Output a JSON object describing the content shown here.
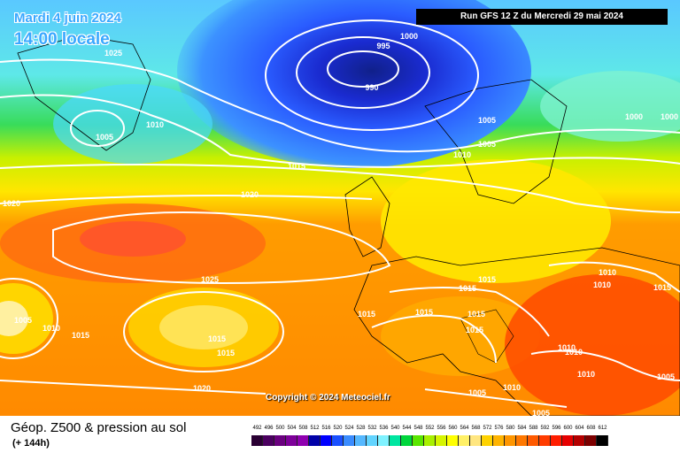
{
  "header": {
    "date": "Mardi 4 juin 2024",
    "local_time": "14:00 locale",
    "run": "Run GFS 12 Z du Mercredi 29 mai 2024"
  },
  "copyright": "Copyright © 2024 Meteociel.fr",
  "footer": {
    "title": "Géop. Z500 & pression au sol",
    "lead": "(+ 144h)"
  },
  "legend": {
    "values": [
      "492",
      "496",
      "500",
      "504",
      "508",
      "512",
      "516",
      "520",
      "524",
      "528",
      "532",
      "536",
      "540",
      "544",
      "548",
      "552",
      "556",
      "560",
      "564",
      "568",
      "572",
      "576",
      "580",
      "584",
      "588",
      "592",
      "596",
      "600",
      "604",
      "608",
      "612"
    ],
    "colors": [
      "#2a0033",
      "#4b0060",
      "#6a007f",
      "#7d0099",
      "#8f00b0",
      "#0000a8",
      "#0000ff",
      "#1a50ff",
      "#3a8cff",
      "#55b8ff",
      "#62d4ff",
      "#7ff2ff",
      "#00e6a0",
      "#00d63c",
      "#5ae600",
      "#a8f000",
      "#d6f500",
      "#ffff00",
      "#fff066",
      "#ffe680",
      "#ffd200",
      "#ffb400",
      "#ff9600",
      "#ff7800",
      "#ff5a00",
      "#ff3c00",
      "#ff1e00",
      "#e60000",
      "#b40000",
      "#7d0000",
      "#000000"
    ]
  },
  "isobar_labels": [
    {
      "text": "1025"
    },
    {
      "text": "1005"
    },
    {
      "text": "1010"
    },
    {
      "text": "995"
    },
    {
      "text": "1000"
    },
    {
      "text": "990"
    },
    {
      "text": "1005"
    },
    {
      "text": "1005"
    },
    {
      "text": "1010"
    },
    {
      "text": "1000"
    },
    {
      "text": "1000"
    },
    {
      "text": "1015"
    },
    {
      "text": "1020"
    },
    {
      "text": "1020"
    },
    {
      "text": "1025"
    },
    {
      "text": "1005"
    },
    {
      "text": "1010"
    },
    {
      "text": "1015"
    },
    {
      "text": "1015"
    },
    {
      "text": "1015"
    },
    {
      "text": "1015"
    },
    {
      "text": "1015"
    },
    {
      "text": "1015"
    },
    {
      "text": "1015"
    },
    {
      "text": "1015"
    },
    {
      "text": "1015"
    },
    {
      "text": "1010"
    },
    {
      "text": "1010"
    },
    {
      "text": "1015"
    },
    {
      "text": "1010"
    },
    {
      "text": "1010"
    },
    {
      "text": "1010"
    },
    {
      "text": "1020"
    },
    {
      "text": "1005"
    },
    {
      "text": "1010"
    },
    {
      "text": "1005"
    },
    {
      "text": "1005"
    }
  ]
}
